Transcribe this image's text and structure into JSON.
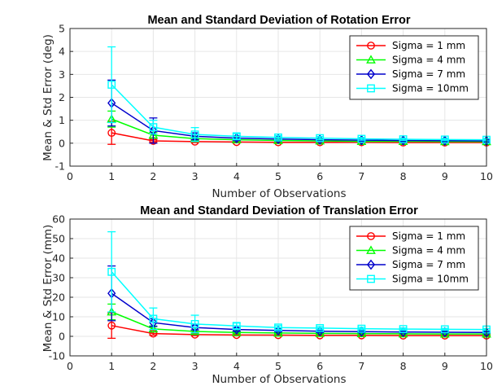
{
  "chart_data": [
    {
      "type": "line",
      "title": "Mean and Standard Deviation of Rotation Error",
      "xlabel": "Number of Observations",
      "ylabel": "Mean & Std Error (deg)",
      "xlim": [
        0,
        10
      ],
      "ylim": [
        -1,
        5
      ],
      "xticks": [
        "0",
        "1",
        "2",
        "3",
        "4",
        "5",
        "6",
        "7",
        "8",
        "9",
        "10"
      ],
      "yticks": [
        "-1",
        "0",
        "1",
        "2",
        "3",
        "4",
        "5"
      ],
      "grid": true,
      "legend_position": "top-right",
      "x": [
        1,
        2,
        3,
        4,
        5,
        6,
        7,
        8,
        9,
        10
      ],
      "series": [
        {
          "name": "Sigma = 1 mm",
          "color": "#ff0000",
          "marker": "circle",
          "values": [
            0.45,
            0.1,
            0.07,
            0.05,
            0.04,
            0.04,
            0.04,
            0.03,
            0.03,
            0.03
          ],
          "errors": [
            0.5,
            0.06,
            0.04,
            0.03,
            0.03,
            0.02,
            0.02,
            0.02,
            0.02,
            0.02
          ]
        },
        {
          "name": "Sigma = 4 mm",
          "color": "#00ff00",
          "marker": "triangle",
          "values": [
            1.05,
            0.35,
            0.2,
            0.15,
            0.12,
            0.1,
            0.08,
            0.08,
            0.07,
            0.07
          ],
          "errors": [
            0.35,
            0.12,
            0.08,
            0.06,
            0.05,
            0.04,
            0.04,
            0.03,
            0.03,
            0.03
          ]
        },
        {
          "name": "Sigma = 7 mm",
          "color": "#0000cc",
          "marker": "diamond",
          "values": [
            1.75,
            0.55,
            0.3,
            0.22,
            0.18,
            0.15,
            0.13,
            0.12,
            0.11,
            0.1
          ],
          "errors": [
            1.0,
            0.55,
            0.15,
            0.1,
            0.08,
            0.06,
            0.05,
            0.05,
            0.04,
            0.04
          ]
        },
        {
          "name": "Sigma = 10mm",
          "color": "#00ffff",
          "marker": "square",
          "values": [
            2.55,
            0.7,
            0.38,
            0.3,
            0.25,
            0.22,
            0.19,
            0.17,
            0.16,
            0.15
          ],
          "errors": [
            1.65,
            0.3,
            0.3,
            0.12,
            0.08,
            0.07,
            0.06,
            0.05,
            0.05,
            0.05
          ]
        }
      ]
    },
    {
      "type": "line",
      "title": "Mean and Standard Deviation of Translation Error",
      "xlabel": "Number of Observations",
      "ylabel": "Mean & Std Error (mm)",
      "xlim": [
        0,
        10
      ],
      "ylim": [
        -10,
        60
      ],
      "xticks": [
        "0",
        "1",
        "2",
        "3",
        "4",
        "5",
        "6",
        "7",
        "8",
        "9",
        "10"
      ],
      "yticks": [
        "-10",
        "0",
        "10",
        "20",
        "30",
        "40",
        "50",
        "60"
      ],
      "grid": true,
      "legend_position": "top-right",
      "x": [
        1,
        2,
        3,
        4,
        5,
        6,
        7,
        8,
        9,
        10
      ],
      "series": [
        {
          "name": "Sigma = 1 mm",
          "color": "#ff0000",
          "marker": "circle",
          "values": [
            5.5,
            1.4,
            0.9,
            0.7,
            0.6,
            0.5,
            0.5,
            0.4,
            0.4,
            0.4
          ],
          "errors": [
            6.5,
            0.8,
            0.5,
            0.4,
            0.3,
            0.3,
            0.2,
            0.2,
            0.2,
            0.2
          ]
        },
        {
          "name": "Sigma = 4 mm",
          "color": "#00ff00",
          "marker": "triangle",
          "values": [
            12.5,
            3.8,
            2.5,
            2.0,
            1.7,
            1.5,
            1.4,
            1.3,
            1.2,
            1.2
          ],
          "errors": [
            4.0,
            1.5,
            0.8,
            0.6,
            0.5,
            0.4,
            0.4,
            0.3,
            0.3,
            0.3
          ]
        },
        {
          "name": "Sigma = 7 mm",
          "color": "#0000cc",
          "marker": "diamond",
          "values": [
            22.0,
            7.0,
            4.5,
            3.5,
            3.0,
            2.6,
            2.4,
            2.2,
            2.1,
            2.0
          ],
          "errors": [
            14.0,
            2.0,
            1.2,
            0.9,
            0.7,
            0.6,
            0.5,
            0.5,
            0.4,
            0.4
          ]
        },
        {
          "name": "Sigma = 10mm",
          "color": "#00ffff",
          "marker": "square",
          "values": [
            33.0,
            9.0,
            6.3,
            5.3,
            4.5,
            4.2,
            3.9,
            3.7,
            3.6,
            3.5
          ],
          "errors": [
            20.5,
            5.5,
            4.5,
            1.5,
            1.0,
            0.8,
            0.7,
            0.6,
            0.5,
            0.5
          ]
        }
      ]
    }
  ]
}
